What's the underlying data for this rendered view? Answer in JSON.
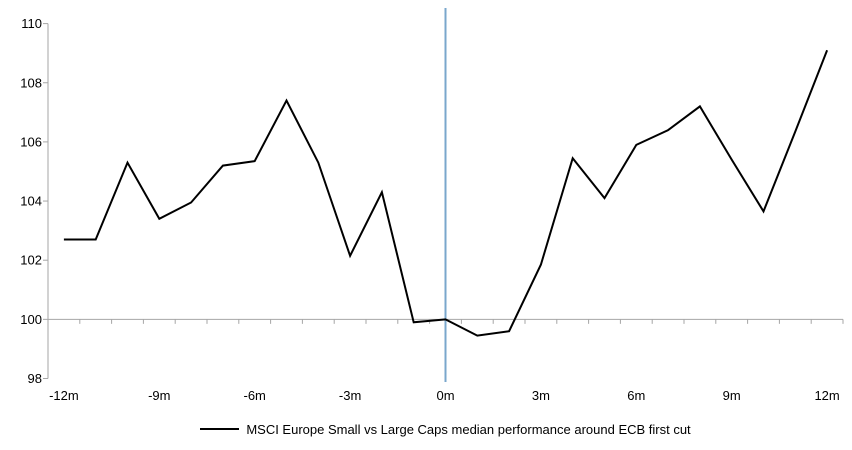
{
  "chart_data": {
    "type": "line",
    "title": "",
    "xlabel": "",
    "ylabel": "",
    "x": [
      -12,
      -11,
      -10,
      -9,
      -8,
      -7,
      -6,
      -5,
      -4,
      -3,
      -2,
      -1,
      0,
      1,
      2,
      3,
      4,
      5,
      6,
      7,
      8,
      9,
      10,
      11,
      12
    ],
    "series": [
      {
        "name": "MSCI Europe Small vs Large Caps median performance around ECB first cut",
        "values": [
          102.7,
          102.7,
          105.3,
          103.4,
          103.95,
          105.2,
          105.35,
          107.4,
          105.3,
          102.15,
          104.3,
          99.9,
          100.0,
          99.45,
          99.6,
          101.85,
          105.45,
          104.1,
          105.9,
          106.4,
          107.2,
          105.4,
          103.65,
          106.35,
          109.1
        ]
      }
    ],
    "ylim": [
      98,
      110
    ],
    "y_ticks": [
      110,
      108,
      106,
      104,
      102,
      100,
      98
    ],
    "x_ticks": [
      {
        "pos": -12,
        "label": "-12m"
      },
      {
        "pos": -9,
        "label": "-9m"
      },
      {
        "pos": -6,
        "label": "-6m"
      },
      {
        "pos": -3,
        "label": "-3m"
      },
      {
        "pos": 0,
        "label": "0m"
      },
      {
        "pos": 3,
        "label": "3m"
      },
      {
        "pos": 6,
        "label": "6m"
      },
      {
        "pos": 9,
        "label": "9m"
      },
      {
        "pos": 12,
        "label": "12m"
      }
    ],
    "baseline_value": 100,
    "event_line_x": 0,
    "grid": "off",
    "legend_position": "bottom-center",
    "colors": {
      "series": "#000000",
      "axis": "#A6A6A6",
      "event_line": "#7AA7CC",
      "text": "#000000",
      "background": "#FFFFFF"
    }
  },
  "legend": {
    "label": "MSCI Europe Small vs Large Caps median performance around ECB first cut"
  }
}
